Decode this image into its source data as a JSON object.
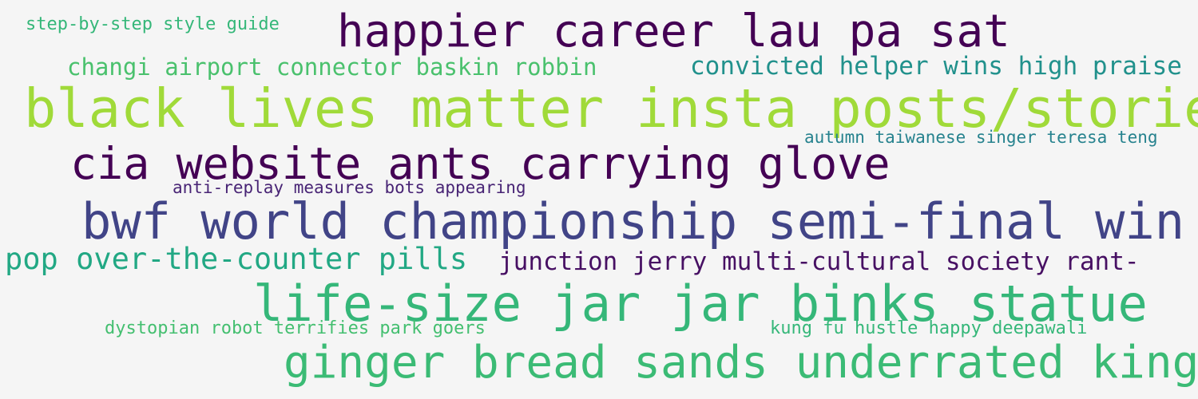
{
  "background": "#f5f5f5",
  "words": {
    "happier": {
      "text": "happier career lau pa sat",
      "color": "#440154"
    },
    "styleguide": {
      "text": "step-by-step style guide",
      "color": "#35b779"
    },
    "changi": {
      "text": "changi airport connector baskin robbin",
      "color": "#4ac16d"
    },
    "convicted": {
      "text": "convicted helper wins high praise",
      "color": "#21918c"
    },
    "blm": {
      "text": "black lives matter insta posts/stories",
      "color": "#a0da39"
    },
    "autumn": {
      "text": "autumn taiwanese singer teresa teng",
      "color": "#26828e"
    },
    "cia": {
      "text": "cia website ants carrying glove",
      "color": "#440154"
    },
    "antireplay": {
      "text": "anti-replay measures bots appearing",
      "color": "#482475"
    },
    "bwf": {
      "text": "bwf world championship semi-final win",
      "color": "#414487"
    },
    "pop": {
      "text": "pop over-the-counter pills",
      "color": "#22a884"
    },
    "junction": {
      "text": "junction jerry multi-cultural society rant-",
      "color": "#471063"
    },
    "lifesize": {
      "text": "life-size jar jar binks statue",
      "color": "#35b779"
    },
    "dystopian": {
      "text": "dystopian robot terrifies park goers",
      "color": "#44bf70"
    },
    "kungfu": {
      "text": "kung fu hustle happy deepawali",
      "color": "#35b779"
    },
    "ginger": {
      "text": "ginger bread sands underrated king",
      "color": "#3bbb75"
    }
  }
}
